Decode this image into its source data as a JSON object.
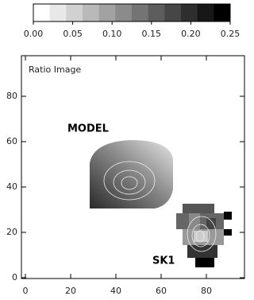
{
  "chart_data": {
    "type": "image",
    "title": "Ratio Image",
    "annotations": [
      "MODEL",
      "SK1"
    ],
    "xlim": [
      0,
      97
    ],
    "ylim": [
      0,
      97
    ],
    "xticks": [
      0,
      20,
      40,
      60,
      80
    ],
    "yticks": [
      0,
      20,
      40,
      60,
      80
    ],
    "colorbar": {
      "lim": [
        0,
        0.25
      ],
      "ticks": [
        {
          "value": 0,
          "label": "0.00"
        },
        {
          "value": 0.05,
          "label": "0.05"
        },
        {
          "value": 0.1,
          "label": "0.10"
        },
        {
          "value": 0.15,
          "label": "0.15"
        },
        {
          "value": 0.2,
          "label": "0.20"
        },
        {
          "value": 0.25,
          "label": "0.25"
        }
      ]
    }
  }
}
